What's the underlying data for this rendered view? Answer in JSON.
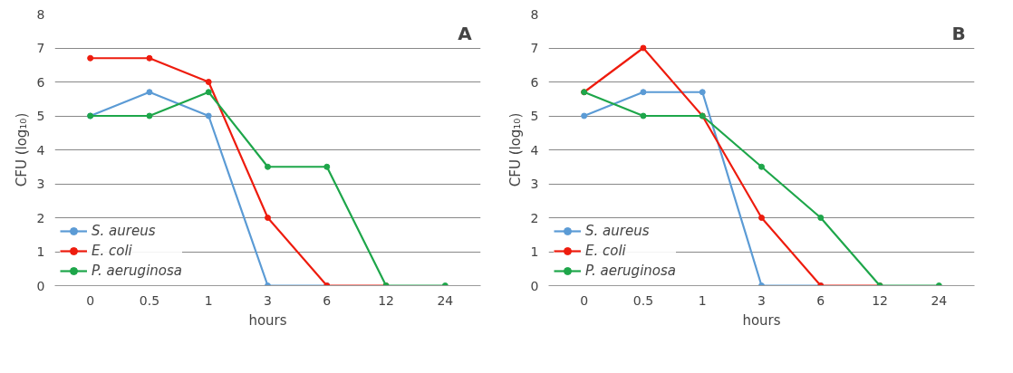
{
  "chart_data": [
    {
      "type": "line",
      "annotations": [
        "A"
      ],
      "xlabel": "hours",
      "ylabel": "CFU (log₁₀)",
      "categories": [
        "0",
        "0.5",
        "1",
        "3",
        "6",
        "12",
        "24"
      ],
      "ylim": [
        0,
        8
      ],
      "yticks": [
        0,
        1,
        2,
        3,
        4,
        5,
        6,
        7,
        8
      ],
      "grid": "y",
      "legend": "bottom left",
      "marker": "circle",
      "series": [
        {
          "name": "S. aureus",
          "color": "#5b9bd5",
          "values": [
            5,
            5.7,
            5,
            0,
            0,
            null,
            null
          ]
        },
        {
          "name": "E. coli",
          "color": "#ee1c0e",
          "values": [
            6.7,
            6.7,
            6,
            2,
            0,
            0,
            null
          ]
        },
        {
          "name": "P. aeruginosa",
          "color": "#1ea64a",
          "values": [
            5,
            5,
            5.7,
            3.5,
            3.5,
            0,
            0
          ]
        }
      ]
    },
    {
      "type": "line",
      "annotations": [
        "B"
      ],
      "xlabel": "hours",
      "ylabel": "CFU (log₁₀)",
      "categories": [
        "0",
        "0.5",
        "1",
        "3",
        "6",
        "12",
        "24"
      ],
      "ylim": [
        0,
        8
      ],
      "yticks": [
        0,
        1,
        2,
        3,
        4,
        5,
        6,
        7,
        8
      ],
      "grid": "y",
      "legend": "bottom left",
      "marker": "circle",
      "series": [
        {
          "name": "S. aureus",
          "color": "#5b9bd5",
          "values": [
            5,
            5.7,
            5.7,
            0,
            0,
            null,
            null
          ]
        },
        {
          "name": "E. coli",
          "color": "#ee1c0e",
          "values": [
            5.7,
            7,
            5,
            2,
            0,
            0,
            null
          ]
        },
        {
          "name": "P. aeruginosa",
          "color": "#1ea64a",
          "values": [
            5.7,
            5,
            5,
            3.5,
            2,
            0,
            0
          ]
        }
      ]
    }
  ]
}
